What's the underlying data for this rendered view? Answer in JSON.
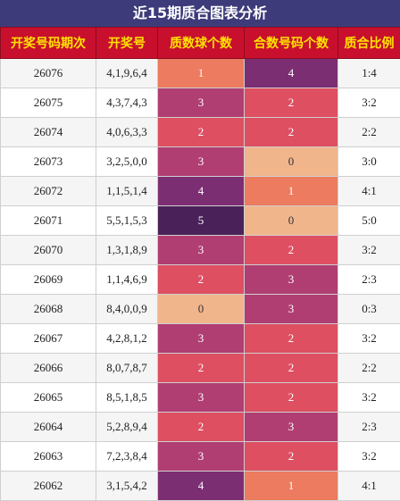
{
  "title": "近15期质合图表分析",
  "headers": [
    "开奖号码期次",
    "开奖号",
    "质数球个数",
    "合数号码个数",
    "质合比例"
  ],
  "heat_colors": {
    "0": "#f1b58c",
    "1": "#ec7b5f",
    "2": "#dd4f61",
    "3": "#b03e72",
    "4": "#7c2e73",
    "5": "#4a2259"
  },
  "rows": [
    {
      "period": "26076",
      "numbers": "4,1,9,6,4",
      "prime": 1,
      "composite": 4,
      "ratio": "1:4"
    },
    {
      "period": "26075",
      "numbers": "4,3,7,4,3",
      "prime": 3,
      "composite": 2,
      "ratio": "3:2"
    },
    {
      "period": "26074",
      "numbers": "4,0,6,3,3",
      "prime": 2,
      "composite": 2,
      "ratio": "2:2"
    },
    {
      "period": "26073",
      "numbers": "3,2,5,0,0",
      "prime": 3,
      "composite": 0,
      "ratio": "3:0"
    },
    {
      "period": "26072",
      "numbers": "1,1,5,1,4",
      "prime": 4,
      "composite": 1,
      "ratio": "4:1"
    },
    {
      "period": "26071",
      "numbers": "5,5,1,5,3",
      "prime": 5,
      "composite": 0,
      "ratio": "5:0"
    },
    {
      "period": "26070",
      "numbers": "1,3,1,8,9",
      "prime": 3,
      "composite": 2,
      "ratio": "3:2"
    },
    {
      "period": "26069",
      "numbers": "1,1,4,6,9",
      "prime": 2,
      "composite": 3,
      "ratio": "2:3"
    },
    {
      "period": "26068",
      "numbers": "8,4,0,0,9",
      "prime": 0,
      "composite": 3,
      "ratio": "0:3"
    },
    {
      "period": "26067",
      "numbers": "4,2,8,1,2",
      "prime": 3,
      "composite": 2,
      "ratio": "3:2"
    },
    {
      "period": "26066",
      "numbers": "8,0,7,8,7",
      "prime": 2,
      "composite": 2,
      "ratio": "2:2"
    },
    {
      "period": "26065",
      "numbers": "8,5,1,8,5",
      "prime": 3,
      "composite": 2,
      "ratio": "3:2"
    },
    {
      "period": "26064",
      "numbers": "5,2,8,9,4",
      "prime": 2,
      "composite": 3,
      "ratio": "2:3"
    },
    {
      "period": "26063",
      "numbers": "7,2,3,8,4",
      "prime": 3,
      "composite": 2,
      "ratio": "3:2"
    },
    {
      "period": "26062",
      "numbers": "3,1,5,4,2",
      "prime": 4,
      "composite": 1,
      "ratio": "4:1"
    }
  ]
}
